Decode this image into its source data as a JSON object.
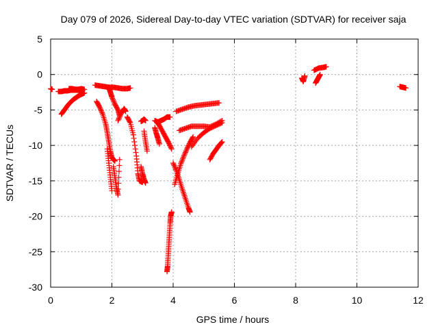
{
  "chart_data": {
    "type": "scatter",
    "title": "Day 079 of 2026, Sidereal Day-to-day VTEC variation (SDTVAR) for receiver saja",
    "xlabel": "GPS time / hours",
    "ylabel": "SDTVAR / TECUs",
    "xlim": [
      0,
      12
    ],
    "ylim": [
      -30,
      5
    ],
    "xticks": [
      "0",
      "2",
      "4",
      "6",
      "8",
      "10",
      "12"
    ],
    "yticks": [
      "5",
      "0",
      "-5",
      "-10",
      "-15",
      "-20",
      "-25",
      "-30"
    ],
    "grid": true,
    "marker": "+",
    "color": "#ff0000",
    "series": [
      {
        "x": [
          0.0,
          0.05
        ],
        "y": [
          -2.0,
          -2.1
        ]
      },
      {
        "x": [
          0.25,
          0.35,
          0.45,
          0.55,
          0.65,
          0.75,
          0.85,
          0.95,
          1.05
        ],
        "y": [
          -2.4,
          -2.4,
          -2.3,
          -2.3,
          -2.2,
          -2.2,
          -2.2,
          -2.2,
          -2.3
        ]
      },
      {
        "x": [
          0.35,
          0.45,
          0.55,
          0.65,
          0.75,
          0.85,
          0.95,
          1.05,
          1.1
        ],
        "y": [
          -5.6,
          -5.0,
          -4.4,
          -3.9,
          -3.5,
          -3.2,
          -2.9,
          -2.7,
          -2.6
        ]
      },
      {
        "x": [
          0.6,
          0.7,
          0.8,
          0.9,
          1.0,
          1.1
        ],
        "y": [
          -2.0,
          -2.0,
          -2.1,
          -2.1,
          -2.0,
          -2.1
        ]
      },
      {
        "x": [
          1.45,
          1.6,
          1.75,
          1.9,
          2.05,
          2.2,
          2.35,
          2.5,
          2.6
        ],
        "y": [
          -1.5,
          -1.6,
          -1.7,
          -1.8,
          -1.8,
          -1.9,
          -2.0,
          -2.0,
          -1.9
        ]
      },
      {
        "x": [
          1.5,
          1.6,
          1.7,
          1.8,
          1.85,
          1.9,
          1.95,
          2.0,
          2.05,
          2.1
        ],
        "y": [
          -3.8,
          -4.6,
          -5.6,
          -7.0,
          -8.2,
          -9.5,
          -10.8,
          -11.7,
          -12.0,
          -12.2
        ]
      },
      {
        "x": [
          1.85,
          1.9,
          1.95,
          2.0
        ],
        "y": [
          -10.5,
          -12.5,
          -14.5,
          -16.4
        ]
      },
      {
        "x": [
          2.05,
          2.1,
          2.15,
          2.2,
          2.25
        ],
        "y": [
          -13.0,
          -14.5,
          -16.0,
          -17.0,
          -12.0
        ]
      },
      {
        "x": [
          1.9,
          1.95,
          2.0,
          2.1,
          2.2,
          2.25
        ],
        "y": [
          -1.8,
          -2.5,
          -3.2,
          -4.2,
          -5.0,
          -5.8
        ]
      },
      {
        "x": [
          2.2,
          2.3,
          2.4,
          2.45
        ],
        "y": [
          -6.5,
          -5.5,
          -4.8,
          -5.2
        ]
      },
      {
        "x": [
          2.5,
          2.6,
          2.7,
          2.8,
          2.85,
          2.9,
          3.0
        ],
        "y": [
          -6.0,
          -6.8,
          -8.5,
          -11.5,
          -14.0,
          -15.0,
          -15.2
        ]
      },
      {
        "x": [
          2.95,
          3.0,
          3.05,
          3.1
        ],
        "y": [
          -6.6,
          -6.5,
          -6.3,
          -6.5
        ]
      },
      {
        "x": [
          2.95,
          3.0,
          3.05,
          3.1
        ],
        "y": [
          -13.0,
          -14.0,
          -14.8,
          -15.3
        ]
      },
      {
        "x": [
          3.05,
          3.1,
          3.15
        ],
        "y": [
          -8.0,
          -9.5,
          -10.8
        ]
      },
      {
        "x": [
          3.4,
          3.5,
          3.6,
          3.7,
          3.8,
          3.9
        ],
        "y": [
          -6.5,
          -6.7,
          -6.5,
          -6.3,
          -6.0,
          -6.0
        ]
      },
      {
        "x": [
          3.45,
          3.55,
          3.65,
          3.75,
          3.85,
          3.95
        ],
        "y": [
          -6.6,
          -7.2,
          -8.0,
          -8.8,
          -9.6,
          -10.5
        ]
      },
      {
        "x": [
          3.4,
          3.45,
          3.5,
          3.55
        ],
        "y": [
          -7.5,
          -8.3,
          -9.0,
          -9.8
        ]
      },
      {
        "x": [
          3.8,
          3.82,
          3.84,
          3.86,
          3.88,
          3.9,
          3.92,
          3.95
        ],
        "y": [
          -27.8,
          -27.0,
          -25.5,
          -24.0,
          -22.5,
          -21.0,
          -20.0,
          -19.4
        ]
      },
      {
        "x": [
          4.0,
          4.1,
          4.2,
          4.3,
          4.4,
          4.5,
          4.55
        ],
        "y": [
          -12.5,
          -13.5,
          -14.8,
          -16.2,
          -17.5,
          -18.8,
          -19.4
        ]
      },
      {
        "x": [
          4.05,
          4.15,
          4.25,
          4.35,
          4.45,
          4.55,
          4.65
        ],
        "y": [
          -15.5,
          -14.0,
          -12.6,
          -11.5,
          -10.5,
          -9.6,
          -8.8
        ]
      },
      {
        "x": [
          4.1,
          4.3,
          4.5,
          4.7,
          4.9,
          5.1,
          5.3,
          5.5
        ],
        "y": [
          -5.2,
          -4.9,
          -4.6,
          -4.4,
          -4.3,
          -4.2,
          -4.1,
          -4.0
        ]
      },
      {
        "x": [
          4.2,
          4.4,
          4.6,
          4.8,
          5.0,
          5.2,
          5.4,
          5.6
        ],
        "y": [
          -7.9,
          -7.6,
          -7.3,
          -7.3,
          -7.3,
          -7.4,
          -7.0,
          -6.5
        ]
      },
      {
        "x": [
          4.6,
          4.8,
          5.0,
          5.2,
          5.4,
          5.6
        ],
        "y": [
          -10.2,
          -9.0,
          -8.2,
          -7.6,
          -7.2,
          -6.8
        ]
      },
      {
        "x": [
          5.2,
          5.3,
          5.4,
          5.5,
          5.6
        ],
        "y": [
          -12.0,
          -11.2,
          -10.6,
          -10.0,
          -9.5
        ]
      },
      {
        "x": [
          8.2,
          8.25,
          8.3
        ],
        "y": [
          -0.5,
          -1.0,
          -0.2
        ]
      },
      {
        "x": [
          8.65,
          8.7,
          8.75,
          8.8
        ],
        "y": [
          -1.2,
          -0.8,
          -0.4,
          0.0
        ]
      },
      {
        "x": [
          8.6,
          8.75,
          8.9,
          9.0
        ],
        "y": [
          0.6,
          0.9,
          1.0,
          1.1
        ]
      },
      {
        "x": [
          11.4,
          11.5,
          11.6
        ],
        "y": [
          -1.7,
          -1.8,
          -1.9
        ]
      }
    ]
  }
}
